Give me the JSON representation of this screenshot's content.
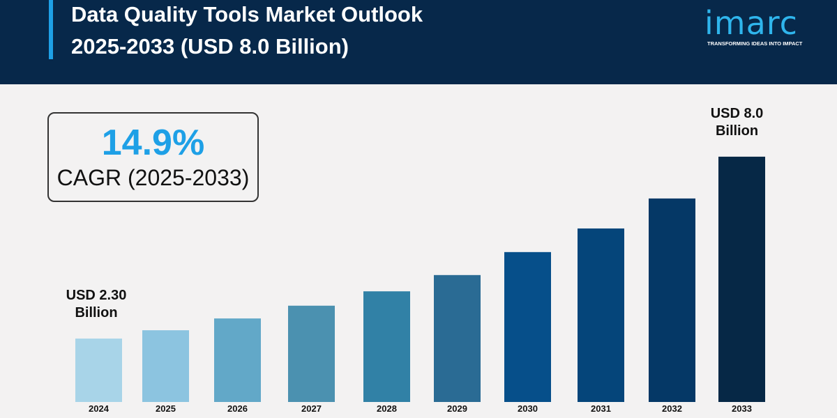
{
  "header": {
    "title_line1": "Data Quality Tools Market Outlook",
    "title_line2": "2025-2033 (USD 8.0 Billion)"
  },
  "logo": {
    "word": "imarc",
    "tagline": "TRANSFORMING IDEAS INTO IMPACT"
  },
  "cagr": {
    "value": "14.9%",
    "label": "CAGR (2025-2033)"
  },
  "colors": {
    "header_bg": "#07284a",
    "accent": "#1ea0e6"
  },
  "chart_data": {
    "type": "bar",
    "categories": [
      "2024",
      "2025",
      "2026",
      "2027",
      "2028",
      "2029",
      "2030",
      "2031",
      "2032",
      "2033"
    ],
    "values": [
      2.3,
      2.56,
      2.93,
      3.33,
      3.78,
      4.29,
      5.01,
      5.75,
      6.69,
      8.0
    ],
    "unit": "USD Billion",
    "colors": [
      "#a8d4e8",
      "#8cc4e0",
      "#62a8c8",
      "#4b91b0",
      "#3181a6",
      "#2a6b94",
      "#064f8a",
      "#05457a",
      "#053866",
      "#062846"
    ],
    "annotations": [
      {
        "category": "2024",
        "line1": "USD 2.30",
        "line2": "Billion"
      },
      {
        "category": "2033",
        "line1": "USD 8.0",
        "line2": "Billion"
      }
    ],
    "grid": false,
    "legend": "none"
  }
}
